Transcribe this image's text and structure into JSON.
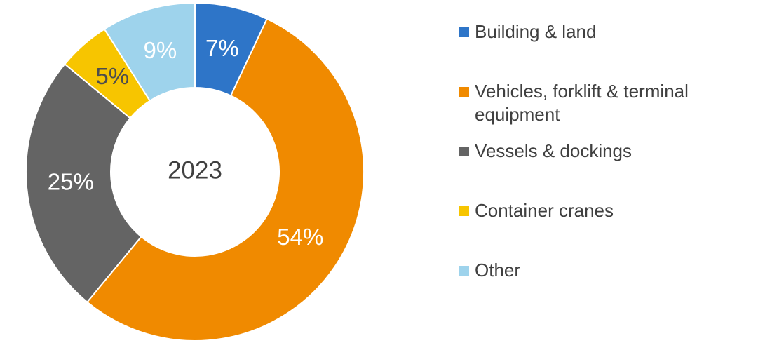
{
  "chart_data": {
    "type": "donut",
    "center_text": "2023",
    "categories": [
      "Building & land",
      "Vehicles, forklift & terminal equipment",
      "Vessels & dockings",
      "Container cranes",
      "Other"
    ],
    "values": [
      7,
      54,
      25,
      5,
      9
    ],
    "value_labels": [
      "7%",
      "54%",
      "25%",
      "5%",
      "9%"
    ],
    "colors": [
      "#2e75c8",
      "#f08a00",
      "#646464",
      "#f7c500",
      "#9ed3ec"
    ],
    "label_colors": [
      "#ffffff",
      "#ffffff",
      "#ffffff",
      "#4d4d4d",
      "#ffffff"
    ],
    "legend": "right"
  }
}
